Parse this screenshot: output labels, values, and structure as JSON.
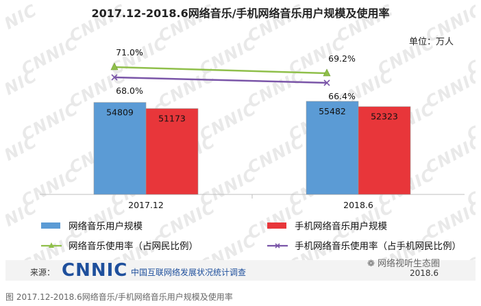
{
  "title": "2017.12-2018.6网络音乐/手机网络音乐用户规模及使用率",
  "unit": "单位：万人",
  "chart_data": {
    "type": "bar",
    "categories": [
      "2017.12",
      "2018.6"
    ],
    "series": [
      {
        "name": "网络音乐用户规模",
        "type": "bar",
        "values": [
          54809,
          55482
        ],
        "color": "#5b9bd5"
      },
      {
        "name": "手机网络音乐用户规模",
        "type": "bar",
        "values": [
          51173,
          52323
        ],
        "color": "#e8363a"
      },
      {
        "name": "网络音乐使用率（占网民比例）",
        "type": "line",
        "values": [
          71.0,
          69.2
        ],
        "labels": [
          "71.0%",
          "69.2%"
        ],
        "color": "#8fbf4a",
        "marker": "triangle"
      },
      {
        "name": "手机网络音乐使用率（占手机网民比例）",
        "type": "line",
        "values": [
          68.0,
          66.4
        ],
        "labels": [
          "68.0%",
          "66.4%"
        ],
        "color": "#7a55a8",
        "marker": "x"
      }
    ],
    "legend_position": "bottom",
    "grid": false
  },
  "watermark": "CNNIC",
  "footer": {
    "source_label": "来源：",
    "logo": "CNNIC",
    "org": "中国互联网络发展状况统计调查",
    "date": "2018.6"
  },
  "wechat": "网络视听生态圈",
  "caption": "图 2017.12-2018.6网络音乐/手机网络音乐用户规模及使用率"
}
